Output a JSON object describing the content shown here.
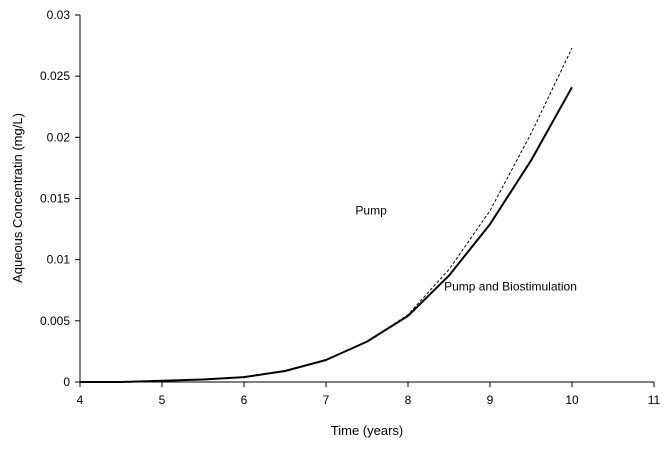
{
  "chart_data": {
    "type": "line",
    "title": "",
    "xlabel": "Time (years)",
    "ylabel": "Aqueous Concentratin (mg/L)",
    "xlim": [
      4,
      11
    ],
    "ylim": [
      0,
      0.03
    ],
    "xticks": [
      4,
      5,
      6,
      7,
      8,
      9,
      10,
      11
    ],
    "yticks": [
      0,
      0.005,
      0.01,
      0.015,
      0.02,
      0.025,
      0.03
    ],
    "xtick_labels": [
      "4",
      "5",
      "6",
      "7",
      "8",
      "9",
      "10",
      "11"
    ],
    "ytick_labels": [
      "0",
      "0.005",
      "0.01",
      "0.015",
      "0.02",
      "0.025",
      "0.03"
    ],
    "grid": false,
    "legend": "none",
    "series": [
      {
        "style": "dashed",
        "color": "#000000",
        "x": [
          4,
          4.5,
          5,
          5.5,
          6,
          6.5,
          7,
          7.5,
          8,
          8.5,
          9,
          9.5,
          10
        ],
        "y": [
          0,
          0,
          0.0001,
          0.0002,
          0.0004,
          0.0009,
          0.0018,
          0.0033,
          0.0055,
          0.0092,
          0.014,
          0.0203,
          0.0273
        ]
      },
      {
        "style": "solid",
        "color": "#000000",
        "x": [
          4,
          4.5,
          5,
          5.5,
          6,
          6.5,
          7,
          7.5,
          8,
          8.5,
          9,
          9.5,
          10
        ],
        "y": [
          0,
          0,
          0.0001,
          0.0002,
          0.0004,
          0.0009,
          0.0018,
          0.0033,
          0.0054,
          0.0087,
          0.0129,
          0.0181,
          0.0241
        ]
      }
    ],
    "annotations": [
      {
        "text": "Pump",
        "x": 7.55,
        "y": 0.0137
      },
      {
        "text": "Pump and Biostimulation",
        "x": 9.25,
        "y": 0.0075
      }
    ]
  }
}
